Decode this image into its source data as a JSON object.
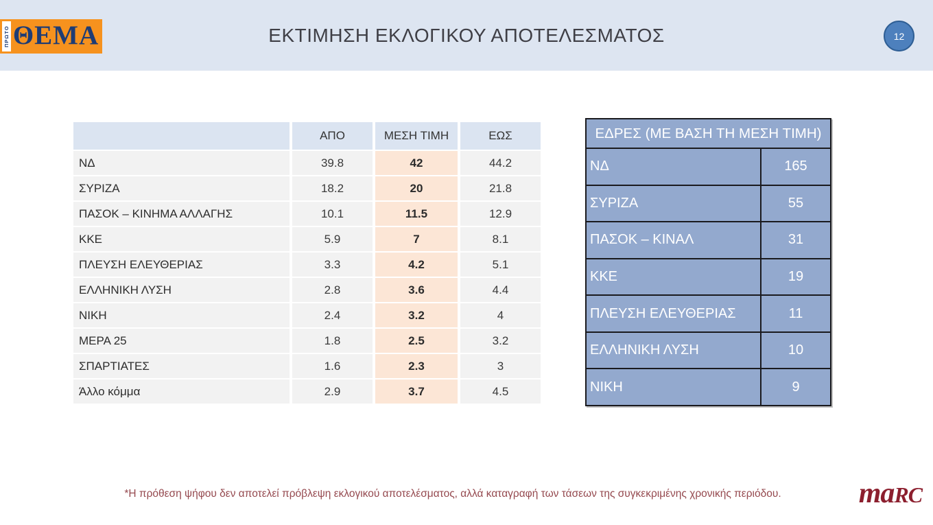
{
  "header": {
    "logo": {
      "vertical": "ΠΡΩΤΟ",
      "main": "ΘΕΜΑ"
    },
    "title": "ΕΚΤΙΜΗΣΗ ΕΚΛΟΓΙΚΟΥ ΑΠΟΤΕΛΕΣΜΑΤΟΣ",
    "page_number": "12"
  },
  "estimate_table": {
    "columns": [
      "",
      "ΑΠΟ",
      "ΜΕΣΗ ΤΙΜΗ",
      "ΕΩΣ"
    ],
    "rows": [
      {
        "party": "ΝΔ",
        "from": "39.8",
        "mean": "42",
        "to": "44.2"
      },
      {
        "party": "ΣΥΡΙΖΑ",
        "from": "18.2",
        "mean": "20",
        "to": "21.8"
      },
      {
        "party": "ΠΑΣΟΚ – ΚΙΝΗΜΑ ΑΛΛΑΓΗΣ",
        "from": "10.1",
        "mean": "11.5",
        "to": "12.9"
      },
      {
        "party": "ΚΚΕ",
        "from": "5.9",
        "mean": "7",
        "to": "8.1"
      },
      {
        "party": "ΠΛΕΥΣΗ ΕΛΕΥΘΕΡΙΑΣ",
        "from": "3.3",
        "mean": "4.2",
        "to": "5.1"
      },
      {
        "party": "ΕΛΛΗΝΙΚΗ ΛΥΣΗ",
        "from": "2.8",
        "mean": "3.6",
        "to": "4.4"
      },
      {
        "party": "ΝΙΚΗ",
        "from": "2.4",
        "mean": "3.2",
        "to": "4"
      },
      {
        "party": "ΜΕΡΑ 25",
        "from": "1.8",
        "mean": "2.5",
        "to": "3.2"
      },
      {
        "party": "ΣΠΑΡΤΙΑΤΕΣ",
        "from": "1.6",
        "mean": "2.3",
        "to": "3"
      },
      {
        "party": "Άλλο κόμμα",
        "from": "2.9",
        "mean": "3.7",
        "to": "4.5"
      }
    ]
  },
  "seats_table": {
    "title": "ΕΔΡΕΣ (ΜΕ ΒΑΣΗ ΤΗ ΜΕΣΗ ΤΙΜΗ)",
    "rows": [
      {
        "party": "ΝΔ",
        "seats": "165"
      },
      {
        "party": "ΣΥΡΙΖΑ",
        "seats": "55"
      },
      {
        "party": "ΠΑΣΟΚ – ΚΙΝΑΛ",
        "seats": "31"
      },
      {
        "party": "ΚΚΕ",
        "seats": "19"
      },
      {
        "party": "ΠΛΕΥΣΗ ΕΛΕΥΘΕΡΙΑΣ",
        "seats": "11"
      },
      {
        "party": "ΕΛΛΗΝΙΚΗ ΛΥΣΗ",
        "seats": "10"
      },
      {
        "party": "ΝΙΚΗ",
        "seats": "9"
      }
    ]
  },
  "footer": {
    "note": "*Η πρόθεση ψήφου δεν αποτελεί πρόβλεψη εκλογικού αποτελέσματος, αλλά καταγραφή των τάσεων της συγκεκριμένης χρονικής περιόδου.",
    "agency_ma": "ma",
    "agency_rc": "RC"
  },
  "colors": {
    "header_band": "#dde5f1",
    "table_header_blue": "#dbe4f1",
    "row_gray": "#f2f2f2",
    "mean_highlight": "#fce6d6",
    "seats_blue": "#93a9ce",
    "seats_border": "#1a1a1e",
    "badge_blue": "#4d80bd",
    "logo_orange": "#f6921e",
    "logo_navy": "#1e3c74",
    "note_red": "#95494f",
    "marc_red": "#8c1f2e"
  }
}
